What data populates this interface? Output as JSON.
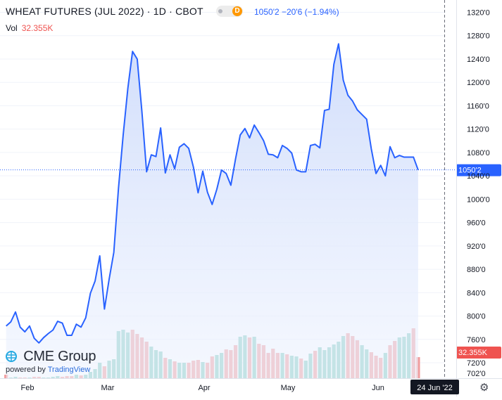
{
  "header": {
    "title": "WHEAT FUTURES (JUL 2022) · 1D · CBOT",
    "d_badge": "D",
    "quote": "1050'2  −20'6 (−1.94%)",
    "vol_label": "Vol",
    "vol_value": "32.355K"
  },
  "brand": {
    "name": "CME Group",
    "powered_by": "powered by",
    "platform": "TradingView"
  },
  "colors": {
    "line": "#2962ff",
    "fill_top": "#cfdcfb",
    "fill_bottom": "#eef3fe",
    "vol_up": "#82cbbf",
    "vol_down": "#f09a9b",
    "last_price_bg": "#2962ff",
    "vol_label_bg": "#ef5350",
    "date_badge_bg": "#131722",
    "axis_text": "#131722"
  },
  "chart_data": {
    "type": "area",
    "title": "WHEAT FUTURES (JUL 2022)",
    "ylim": [
      702,
      1320
    ],
    "y_ticks": [
      "1320'0",
      "1280'0",
      "1240'0",
      "1200'0",
      "1160'0",
      "1120'0",
      "1080'0",
      "1040'0",
      "1000'0",
      "960'0",
      "920'0",
      "880'0",
      "840'0",
      "800'0",
      "760'0",
      "720'0",
      "702'0"
    ],
    "x_labels": [
      "Feb",
      "Mar",
      "Apr",
      "May",
      "Jun"
    ],
    "last_price_label": "1050'2",
    "last_price": 1050.25,
    "volume_label": "32.355K",
    "crosshair_date": "24 Jun '22",
    "price_series": {
      "name": "",
      "values": [
        783,
        790,
        807,
        781,
        773,
        783,
        762,
        754,
        763,
        770,
        776,
        791,
        788,
        767,
        767,
        786,
        781,
        797,
        839,
        860,
        903,
        812,
        863,
        909,
        1019,
        1110,
        1190,
        1253,
        1240,
        1150,
        1047,
        1076,
        1073,
        1122,
        1045,
        1076,
        1052,
        1089,
        1095,
        1087,
        1055,
        1011,
        1048,
        1012,
        991,
        1017,
        1050,
        1044,
        1024,
        1069,
        1110,
        1121,
        1105,
        1127,
        1114,
        1100,
        1077,
        1076,
        1071,
        1092,
        1087,
        1079,
        1050,
        1047,
        1047,
        1092,
        1094,
        1088,
        1152,
        1154,
        1231,
        1266,
        1204,
        1178,
        1168,
        1153,
        1145,
        1137,
        1086,
        1044,
        1058,
        1040,
        1090,
        1071,
        1075,
        1072,
        1072,
        1072,
        1050
      ]
    },
    "volume_bars": [
      {
        "u": 0,
        "h": 5
      },
      {
        "u": 1,
        "h": 1
      },
      {
        "u": 1,
        "h": 2
      },
      {
        "u": 0,
        "h": 1
      },
      {
        "u": 0,
        "h": 1
      },
      {
        "u": 1,
        "h": 1
      },
      {
        "u": 0,
        "h": 2
      },
      {
        "u": 0,
        "h": 2
      },
      {
        "u": 1,
        "h": 1
      },
      {
        "u": 1,
        "h": 1
      },
      {
        "u": 1,
        "h": 2
      },
      {
        "u": 1,
        "h": 3
      },
      {
        "u": 0,
        "h": 2
      },
      {
        "u": 0,
        "h": 3
      },
      {
        "u": 0,
        "h": 3
      },
      {
        "u": 1,
        "h": 5
      },
      {
        "u": 0,
        "h": 4
      },
      {
        "u": 1,
        "h": 5
      },
      {
        "u": 1,
        "h": 9
      },
      {
        "u": 1,
        "h": 13
      },
      {
        "u": 1,
        "h": 22
      },
      {
        "u": 0,
        "h": 17
      },
      {
        "u": 1,
        "h": 25
      },
      {
        "u": 1,
        "h": 27
      },
      {
        "u": 1,
        "h": 67
      },
      {
        "u": 1,
        "h": 69
      },
      {
        "u": 1,
        "h": 65
      },
      {
        "u": 0,
        "h": 69
      },
      {
        "u": 0,
        "h": 63
      },
      {
        "u": 0,
        "h": 58
      },
      {
        "u": 0,
        "h": 52
      },
      {
        "u": 1,
        "h": 45
      },
      {
        "u": 1,
        "h": 40
      },
      {
        "u": 1,
        "h": 38
      },
      {
        "u": 0,
        "h": 29
      },
      {
        "u": 1,
        "h": 27
      },
      {
        "u": 0,
        "h": 24
      },
      {
        "u": 1,
        "h": 22
      },
      {
        "u": 1,
        "h": 22
      },
      {
        "u": 0,
        "h": 22
      },
      {
        "u": 0,
        "h": 25
      },
      {
        "u": 0,
        "h": 26
      },
      {
        "u": 1,
        "h": 23
      },
      {
        "u": 0,
        "h": 22
      },
      {
        "u": 0,
        "h": 31
      },
      {
        "u": 1,
        "h": 33
      },
      {
        "u": 1,
        "h": 36
      },
      {
        "u": 0,
        "h": 41
      },
      {
        "u": 0,
        "h": 40
      },
      {
        "u": 0,
        "h": 47
      },
      {
        "u": 1,
        "h": 59
      },
      {
        "u": 1,
        "h": 61
      },
      {
        "u": 0,
        "h": 58
      },
      {
        "u": 1,
        "h": 59
      },
      {
        "u": 0,
        "h": 49
      },
      {
        "u": 0,
        "h": 47
      },
      {
        "u": 0,
        "h": 36
      },
      {
        "u": 0,
        "h": 42
      },
      {
        "u": 0,
        "h": 36
      },
      {
        "u": 1,
        "h": 36
      },
      {
        "u": 0,
        "h": 34
      },
      {
        "u": 1,
        "h": 32
      },
      {
        "u": 1,
        "h": 31
      },
      {
        "u": 0,
        "h": 28
      },
      {
        "u": 1,
        "h": 25
      },
      {
        "u": 1,
        "h": 35
      },
      {
        "u": 0,
        "h": 39
      },
      {
        "u": 1,
        "h": 44
      },
      {
        "u": 1,
        "h": 40
      },
      {
        "u": 1,
        "h": 44
      },
      {
        "u": 1,
        "h": 48
      },
      {
        "u": 1,
        "h": 52
      },
      {
        "u": 1,
        "h": 60
      },
      {
        "u": 0,
        "h": 64
      },
      {
        "u": 0,
        "h": 60
      },
      {
        "u": 0,
        "h": 54
      },
      {
        "u": 1,
        "h": 47
      },
      {
        "u": 1,
        "h": 41
      },
      {
        "u": 0,
        "h": 37
      },
      {
        "u": 0,
        "h": 32
      },
      {
        "u": 0,
        "h": 29
      },
      {
        "u": 1,
        "h": 36
      },
      {
        "u": 0,
        "h": 47
      },
      {
        "u": 0,
        "h": 53
      },
      {
        "u": 1,
        "h": 58
      },
      {
        "u": 1,
        "h": 59
      },
      {
        "u": 1,
        "h": 64
      },
      {
        "u": 0,
        "h": 71
      },
      {
        "u": 0,
        "h": 30
      }
    ]
  }
}
